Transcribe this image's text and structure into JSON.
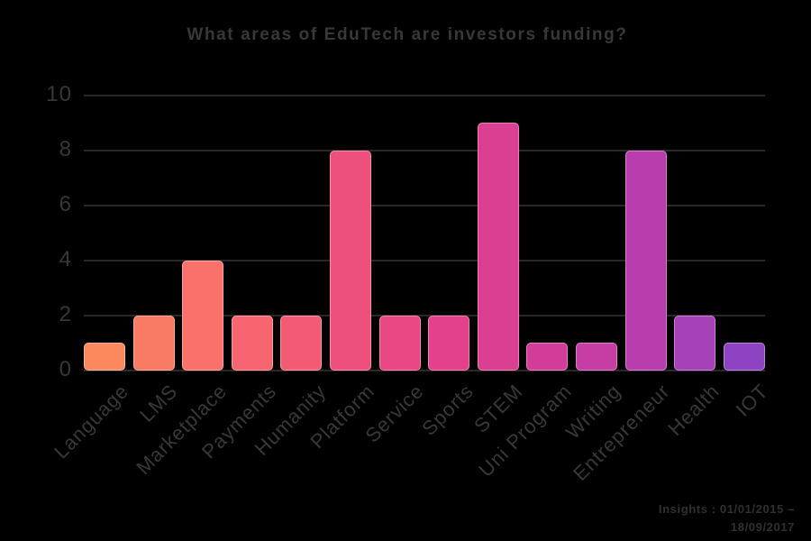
{
  "header": {
    "title": "What areas of EduTech are investors funding?"
  },
  "footer": {
    "line1": "Insights : 01/01/2015 –",
    "line2": "18/09/2017"
  },
  "colors": {
    "background": "#000000",
    "gridline": "#282828",
    "text": "#383838",
    "footer_text": "#303030"
  },
  "chart_data": {
    "type": "bar",
    "title": "What areas of EduTech are investors funding?",
    "categories": [
      "Language",
      "LMS",
      "Marketplace",
      "Payments",
      "Humanity",
      "Platform",
      "Service",
      "Sports",
      "STEM",
      "Uni Program",
      "Writing",
      "Entrepreneur",
      "Health",
      "IOT"
    ],
    "values": [
      1,
      2,
      4,
      2,
      2,
      8,
      2,
      2,
      9,
      1,
      1,
      8,
      2,
      1
    ],
    "bar_colors": [
      "#FC895D",
      "#FA7B64",
      "#F9716A",
      "#F66570",
      "#F35B75",
      "#EE507D",
      "#E94884",
      "#E3418C",
      "#DB3F92",
      "#D23D9A",
      "#C63DA3",
      "#B83EAD",
      "#A641B8",
      "#8E44C2"
    ],
    "xlabel": "",
    "ylabel": "",
    "ylim": [
      0,
      10
    ],
    "yticks": [
      0,
      2,
      4,
      6,
      8,
      10
    ],
    "grid": true,
    "legend": false,
    "x_tick_rotation_deg": 45
  }
}
